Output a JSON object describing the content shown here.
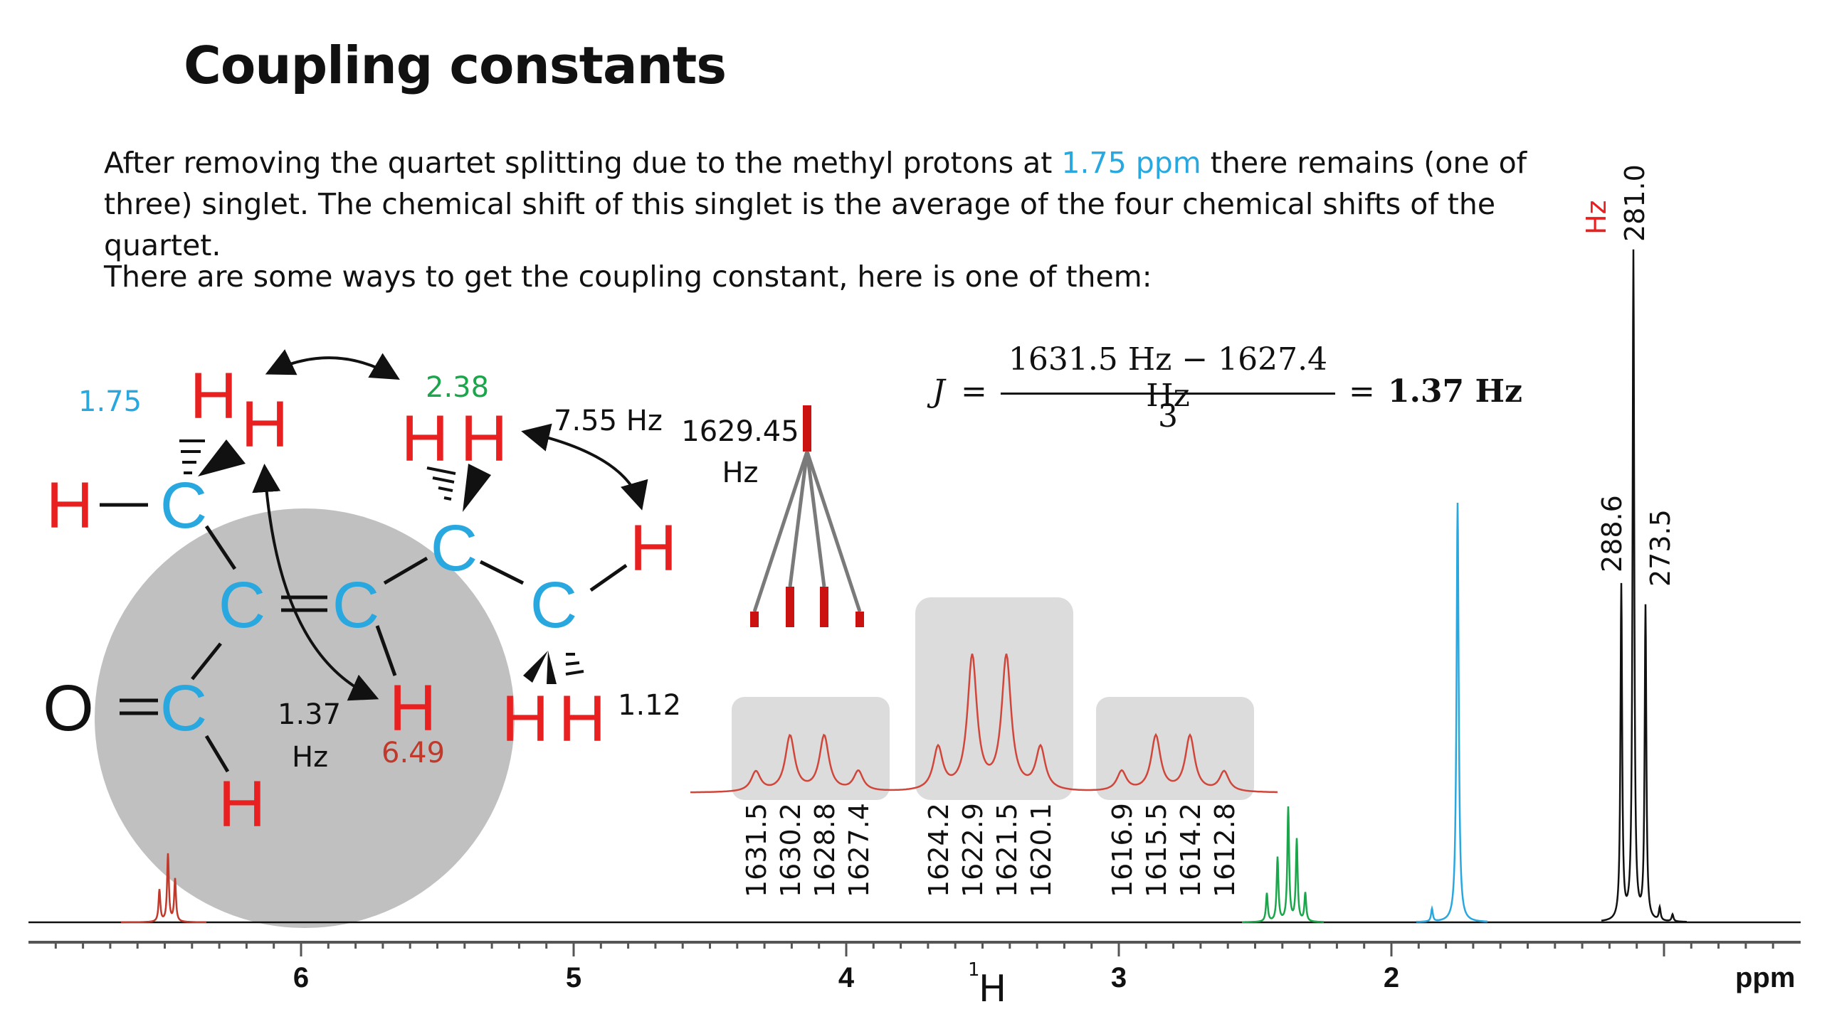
{
  "title": "Coupling constants",
  "paragraph1": {
    "before": "After removing the quartet splitting due to the methyl protons at ",
    "highlight": "1.75 ppm",
    "after": " there remains (one of three) singlet. The chemical shift of this singlet is the average of the four chemical shifts of the quartet."
  },
  "paragraph2": "There are some ways to get the coupling constant, here is one of them:",
  "molecule": {
    "atom_H": "H",
    "atom_C": "C",
    "atom_O": "O",
    "shift_methyl": "1.75",
    "shift_ch2": "2.38",
    "shift_vinyl": "6.49",
    "shift_ch3": "1.12",
    "j_vinyl_value": "1.37",
    "j_vinyl_unit": "Hz",
    "j_ethyl": "7.55 Hz"
  },
  "tree": {
    "center_value": "1629.45",
    "center_unit": "Hz"
  },
  "formula": {
    "symbol": "J",
    "equals": "=",
    "numerator": "1631.5 Hz − 1627.4 Hz",
    "denominator": "3",
    "result": "1.37 Hz"
  },
  "multiplet_labels": [
    [
      "1631.5",
      "1630.2",
      "1628.8",
      "1627.4"
    ],
    [
      "1624.2",
      "1622.9",
      "1621.5",
      "1620.1"
    ],
    [
      "1616.9",
      "1615.5",
      "1614.2",
      "1612.8"
    ]
  ],
  "spectrum_peak_labels": {
    "unit": "Hz",
    "values": [
      "281.0",
      "288.6",
      "273.5"
    ]
  },
  "axis": {
    "nucleus_superscript": "1",
    "nucleus": "H",
    "unit": "ppm",
    "ticks": [
      "6",
      "5",
      "4",
      "3",
      "2"
    ]
  },
  "colors": {
    "atom_h": "#e8201f",
    "atom_c": "#29a8e0",
    "green": "#1aa64a",
    "darkred": "#c0392b",
    "multiplet_line": "#d0463a",
    "box_gray": "#dcdcdc",
    "circle_gray": "#c0c0c0",
    "tree_red": "#cc1111"
  }
}
